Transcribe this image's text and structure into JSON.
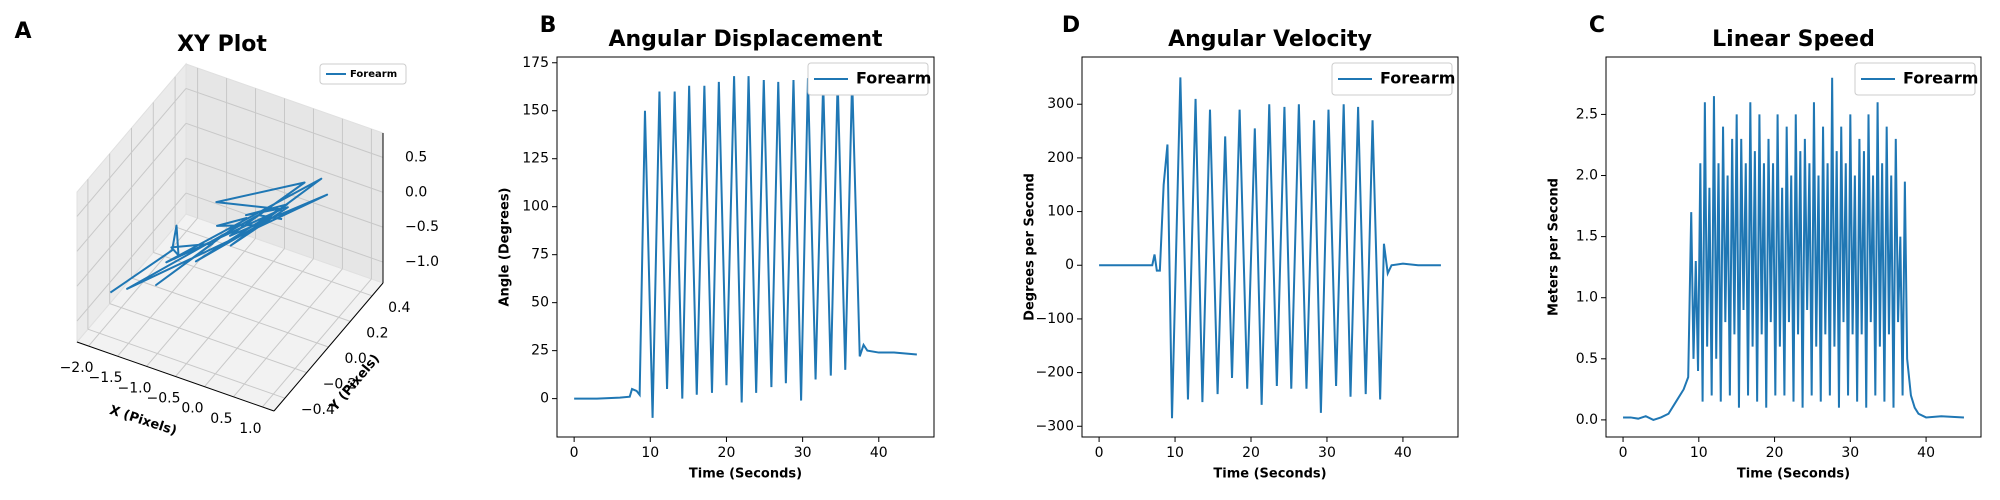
{
  "chart_data": [
    {
      "type": "line3d",
      "panel_label": "A",
      "title": "XY Plot",
      "xlabel": "X (Pixels)",
      "ylabel": "Y (Pixels)",
      "series": [
        {
          "name": "Forearm",
          "color": "#1f77b4",
          "x": [
            -2.0,
            -1.5,
            -1.8,
            -1.2,
            -1.7,
            -0.8,
            -1.4,
            -0.4,
            -1.1,
            0.0,
            -0.9,
            0.3,
            -0.6,
            0.5,
            -0.3,
            0.7,
            -1.6,
            0.2,
            -1.3,
            0.6,
            -0.5,
            0.8,
            -1.9,
            -0.2,
            0.4
          ],
          "y": [
            -0.3,
            0.0,
            0.2,
            -0.1,
            0.1,
            0.0,
            -0.2,
            0.1,
            0.2,
            0.0,
            -0.1,
            0.1,
            0.2,
            0.0,
            -0.1,
            0.2,
            0.0,
            0.1,
            0.3,
            0.1,
            0.0,
            0.2,
            -0.2,
            0.1,
            0.0
          ],
          "z": [
            -0.9,
            -0.7,
            -0.8,
            -0.5,
            -0.9,
            -0.4,
            -0.8,
            -0.1,
            -0.6,
            0.1,
            -0.5,
            0.3,
            -0.3,
            0.5,
            -0.1,
            0.6,
            -0.9,
            0.2,
            -0.5,
            0.7,
            -0.2,
            0.4,
            -1.0,
            0.0,
            0.3
          ]
        }
      ],
      "xlim": [
        -2.2,
        1.2
      ],
      "ylim": [
        -0.5,
        0.5
      ],
      "zlim": [
        -1.3,
        0.85
      ],
      "xticks": [
        {
          "value": -2,
          "label": "−2.0"
        },
        {
          "value": -1.5,
          "label": "−1.5"
        },
        {
          "value": -1,
          "label": "−1.0"
        },
        {
          "value": -0.5,
          "label": "−0.5"
        },
        {
          "value": 0,
          "label": "0.0"
        },
        0.5,
        {
          "value": 1,
          "label": "1.0"
        }
      ],
      "yticks": [
        {
          "value": -0.4,
          "label": "−0.4"
        },
        {
          "value": -0.2,
          "label": "−0.2"
        },
        {
          "value": 0,
          "label": "0.0"
        },
        0.2,
        0.4
      ],
      "zticks": [
        {
          "value": -1,
          "label": "−1.0"
        },
        {
          "value": -0.5,
          "label": "−0.5"
        },
        {
          "value": 0,
          "label": "0.0"
        },
        0.5
      ],
      "legend": "upper right",
      "grid": true
    },
    {
      "type": "line",
      "panel_label": "B",
      "title": "Angular Displacement",
      "xlabel": "Time (Seconds)",
      "ylabel": "Angle (Degrees)",
      "series": [
        {
          "name": "Forearm",
          "color": "#1f77b4",
          "x": [
            0,
            3,
            6,
            7.3,
            7.6,
            8.2,
            8.6,
            9.3,
            10.3,
            11.2,
            12.2,
            13.2,
            14.2,
            15.1,
            16.1,
            17.1,
            18.1,
            19.0,
            20.0,
            21.0,
            22.0,
            22.9,
            23.9,
            24.9,
            25.9,
            26.8,
            27.8,
            28.8,
            29.8,
            30.7,
            31.7,
            32.7,
            33.7,
            34.6,
            35.6,
            36.5,
            37.5,
            38.0,
            38.5,
            40,
            42,
            45
          ],
          "values": [
            0,
            0,
            0.5,
            1,
            5,
            4,
            2,
            150,
            -10,
            160,
            5,
            160,
            0,
            163,
            2,
            163,
            3,
            165,
            7,
            168,
            -2,
            168,
            3,
            166,
            6,
            165,
            8,
            166,
            -1,
            167,
            10,
            165,
            12,
            166,
            15,
            167,
            22,
            28,
            25,
            24,
            24,
            23
          ]
        }
      ],
      "xlim": [
        -2.25,
        47.25
      ],
      "ylim": [
        -20,
        178
      ],
      "xticks": [
        0,
        10,
        20,
        30,
        40
      ],
      "yticks": [
        0,
        25,
        50,
        75,
        100,
        125,
        150,
        175
      ],
      "legend": "upper right",
      "grid": false
    },
    {
      "type": "line",
      "panel_label": "D",
      "title": "Angular Velocity",
      "xlabel": "Time (Seconds)",
      "ylabel": "Degrees per Second",
      "series": [
        {
          "name": "Forearm",
          "color": "#1f77b4",
          "x": [
            0,
            3,
            6,
            7.0,
            7.3,
            7.6,
            8.0,
            8.5,
            9.0,
            9.6,
            10.7,
            11.7,
            12.7,
            13.6,
            14.6,
            15.6,
            16.6,
            17.5,
            18.5,
            19.5,
            20.5,
            21.4,
            22.4,
            23.4,
            24.4,
            25.3,
            26.3,
            27.3,
            28.3,
            29.2,
            30.2,
            31.2,
            32.2,
            33.1,
            34.1,
            35.1,
            36.0,
            37.0,
            37.5,
            38.0,
            38.5,
            40,
            42,
            45
          ],
          "values": [
            0,
            0,
            0,
            0,
            20,
            -10,
            -10,
            150,
            225,
            -285,
            350,
            -250,
            310,
            -255,
            290,
            -240,
            240,
            -210,
            290,
            -230,
            255,
            -260,
            300,
            -225,
            295,
            -230,
            300,
            -230,
            270,
            -275,
            290,
            -225,
            300,
            -245,
            295,
            -240,
            270,
            -250,
            40,
            -15,
            0,
            3,
            0,
            0
          ]
        }
      ],
      "xlim": [
        -2.25,
        47.25
      ],
      "ylim": [
        -320,
        388
      ],
      "xticks": [
        0,
        10,
        20,
        30,
        40
      ],
      "yticks": [
        {
          "value": -300,
          "label": "−300"
        },
        {
          "value": -200,
          "label": "−200"
        },
        {
          "value": -100,
          "label": "−100"
        },
        0,
        100,
        200,
        300
      ],
      "legend": "upper right",
      "grid": false
    },
    {
      "type": "line",
      "panel_label": "C",
      "title": "Linear Speed",
      "xlabel": "Time (Seconds)",
      "ylabel": "Meters per Second",
      "series": [
        {
          "name": "Forearm",
          "color": "#1f77b4",
          "x": [
            0,
            1,
            2,
            3,
            4,
            5,
            6,
            7,
            8,
            8.6,
            9.0,
            9.3,
            9.6,
            9.9,
            10.2,
            10.5,
            10.8,
            11.1,
            11.4,
            11.7,
            12.0,
            12.3,
            12.6,
            12.9,
            13.2,
            13.5,
            13.8,
            14.1,
            14.4,
            14.7,
            15.0,
            15.3,
            15.6,
            15.9,
            16.2,
            16.5,
            16.8,
            17.1,
            17.4,
            17.7,
            18.0,
            18.3,
            18.6,
            18.9,
            19.2,
            19.5,
            19.8,
            20.1,
            20.4,
            20.7,
            21.0,
            21.3,
            21.6,
            21.9,
            22.2,
            22.5,
            22.8,
            23.1,
            23.4,
            23.7,
            24.0,
            24.3,
            24.6,
            24.9,
            25.2,
            25.5,
            25.8,
            26.1,
            26.4,
            26.7,
            27.0,
            27.3,
            27.6,
            27.9,
            28.2,
            28.5,
            28.8,
            29.1,
            29.4,
            29.7,
            30.0,
            30.3,
            30.6,
            30.9,
            31.2,
            31.5,
            31.8,
            32.1,
            32.4,
            32.7,
            33.0,
            33.3,
            33.6,
            33.9,
            34.2,
            34.5,
            34.8,
            35.1,
            35.4,
            35.7,
            36.0,
            36.3,
            36.6,
            36.9,
            37.2,
            37.5,
            38,
            38.5,
            39,
            40,
            42,
            45
          ],
          "values": [
            0.02,
            0.02,
            0.01,
            0.03,
            0.0,
            0.02,
            0.05,
            0.15,
            0.25,
            0.35,
            1.7,
            0.5,
            1.3,
            0.4,
            2.1,
            0.15,
            2.6,
            0.6,
            1.9,
            0.2,
            2.65,
            0.5,
            2.1,
            0.15,
            2.4,
            0.8,
            2.0,
            0.2,
            2.3,
            0.7,
            2.5,
            0.1,
            2.3,
            0.9,
            2.1,
            0.2,
            2.6,
            0.6,
            2.2,
            0.15,
            2.5,
            0.7,
            2.1,
            0.1,
            2.3,
            0.8,
            2.1,
            0.2,
            2.5,
            0.6,
            1.9,
            0.2,
            2.4,
            0.8,
            2.0,
            0.15,
            2.5,
            0.7,
            2.2,
            0.1,
            2.3,
            0.9,
            2.1,
            0.2,
            2.6,
            0.6,
            2.0,
            0.15,
            2.4,
            0.7,
            2.1,
            0.2,
            2.8,
            0.6,
            2.2,
            0.1,
            2.4,
            0.8,
            2.1,
            0.2,
            2.5,
            0.7,
            2.0,
            0.15,
            2.3,
            0.7,
            2.2,
            0.1,
            2.5,
            0.8,
            2.0,
            0.2,
            2.6,
            0.6,
            2.1,
            0.15,
            2.4,
            0.7,
            2.0,
            0.1,
            2.3,
            0.8,
            1.5,
            0.2,
            1.95,
            0.5,
            0.2,
            0.1,
            0.05,
            0.02,
            0.03,
            0.02
          ]
        }
      ],
      "xlim": [
        -2.25,
        47.25
      ],
      "ylim": [
        -0.14,
        2.97
      ],
      "xticks": [
        0,
        10,
        20,
        30,
        40
      ],
      "yticks": [
        {
          "value": 0,
          "label": "0.0"
        },
        0.5,
        {
          "value": 1,
          "label": "1.0"
        },
        1.5,
        {
          "value": 2,
          "label": "2.0"
        },
        2.5
      ],
      "legend": "upper right",
      "grid": false
    }
  ]
}
